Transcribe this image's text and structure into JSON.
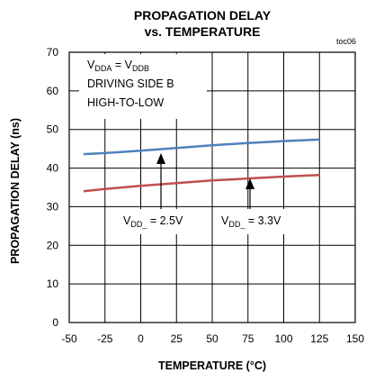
{
  "chart_data": {
    "type": "line",
    "title_line1": "PROPAGATION DELAY",
    "title_line2": "vs. TEMPERATURE",
    "figure_id": "toc06",
    "xlabel": "TEMPERATURE (°C)",
    "ylabel": "PROPAGATION DELAY (ns)",
    "xlim": [
      -50,
      150
    ],
    "ylim": [
      0,
      70
    ],
    "xticks": [
      -50,
      -25,
      0,
      25,
      50,
      75,
      100,
      125,
      150
    ],
    "yticks": [
      0,
      10,
      20,
      30,
      40,
      50,
      60,
      70
    ],
    "grid": true,
    "series": [
      {
        "label": "VDD_ = 2.5V",
        "color": "#c0504d",
        "x": [
          -40,
          -25,
          0,
          25,
          50,
          75,
          100,
          125
        ],
        "y": [
          34.0,
          34.6,
          35.4,
          36.1,
          36.8,
          37.3,
          37.8,
          38.2
        ]
      },
      {
        "label": "VDD_ = 3.3V",
        "color": "#4f81bd",
        "x": [
          -40,
          -25,
          0,
          25,
          50,
          75,
          100,
          125
        ],
        "y": [
          43.6,
          43.9,
          44.5,
          45.2,
          45.9,
          46.5,
          47.0,
          47.4
        ]
      }
    ],
    "annotations": {
      "condition_line1": {
        "v1": "V",
        "s1": "DDA",
        "mid": " = V",
        "s2": "DDB"
      },
      "condition_line2": "DRIVING SIDE B",
      "condition_line3": "HIGH-TO-LOW",
      "label_2v5": {
        "main": "V",
        "sub": "DD_",
        "rest": " = 2.5V"
      },
      "label_3v3": {
        "main": "V",
        "sub": "DD_",
        "rest": " = 3.3V"
      }
    }
  }
}
